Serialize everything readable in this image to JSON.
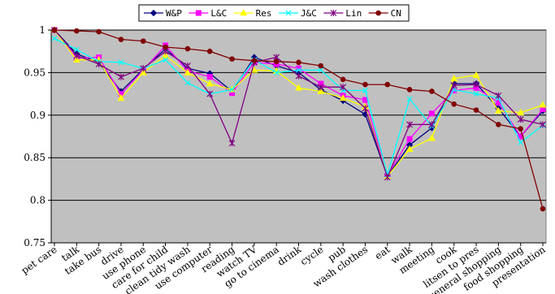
{
  "chart_data": {
    "type": "line",
    "title": "",
    "xlabel": "",
    "ylabel": "",
    "ylim": [
      0.75,
      1
    ],
    "yticks": [
      0.75,
      0.8,
      0.85,
      0.9,
      0.95,
      1
    ],
    "ytick_labels": [
      "0.75",
      "0.8",
      "0.85",
      "0.9",
      "0.95",
      "1"
    ],
    "grid": "horizontal",
    "legend_position": "top",
    "plot_background": "#c0c0c0",
    "categories": [
      "pet care",
      "talk",
      "take bus",
      "drive",
      "use phone",
      "care for child",
      "clean tidy wash",
      "use computer",
      "reading",
      "watch TV",
      "go to cinema",
      "drink",
      "cycle",
      "pub",
      "wash clothes",
      "eat",
      "walk",
      "meeting",
      "cook",
      "litsen to pres",
      "general shopping",
      "food shopping",
      "presentation"
    ],
    "series": [
      {
        "name": "W&P",
        "color": "#000080",
        "marker": "diamond",
        "values": [
          1.0,
          0.972,
          0.962,
          0.928,
          0.954,
          0.978,
          0.955,
          0.949,
          0.928,
          0.968,
          0.958,
          0.95,
          0.93,
          0.917,
          0.901,
          0.828,
          0.865,
          0.885,
          0.937,
          0.937,
          0.908,
          0.875,
          0.905
        ]
      },
      {
        "name": "L&C",
        "color": "#ff00ff",
        "marker": "square",
        "values": [
          1.0,
          0.967,
          0.968,
          0.925,
          0.953,
          0.982,
          0.952,
          0.945,
          0.926,
          0.962,
          0.96,
          0.955,
          0.937,
          0.923,
          0.918,
          0.829,
          0.872,
          0.902,
          0.929,
          0.932,
          0.915,
          0.875,
          0.907
        ]
      },
      {
        "name": "Res",
        "color": "#ffff00",
        "marker": "triangle",
        "values": [
          1.0,
          0.965,
          0.965,
          0.92,
          0.95,
          0.97,
          0.95,
          0.937,
          0.93,
          0.953,
          0.952,
          0.932,
          0.928,
          0.92,
          0.91,
          0.828,
          0.86,
          0.873,
          0.943,
          0.947,
          0.905,
          0.903,
          0.912
        ]
      },
      {
        "name": "J&C",
        "color": "#00ffff",
        "marker": "x",
        "values": [
          0.99,
          0.977,
          0.963,
          0.962,
          0.955,
          0.965,
          0.938,
          0.925,
          0.93,
          0.965,
          0.95,
          0.953,
          0.953,
          0.929,
          0.929,
          0.83,
          0.919,
          0.887,
          0.93,
          0.925,
          0.92,
          0.868,
          0.888
        ]
      },
      {
        "name": "Lin",
        "color": "#800080",
        "marker": "star",
        "values": [
          1.0,
          0.97,
          0.96,
          0.945,
          0.955,
          0.975,
          0.958,
          0.925,
          0.867,
          0.962,
          0.968,
          0.946,
          0.933,
          0.933,
          0.908,
          0.827,
          0.889,
          0.889,
          0.935,
          0.936,
          0.923,
          0.895,
          0.889
        ]
      },
      {
        "name": "CN",
        "color": "#800000",
        "marker": "circle",
        "values": [
          1.0,
          0.999,
          0.998,
          0.989,
          0.987,
          0.98,
          0.978,
          0.975,
          0.966,
          0.964,
          0.963,
          0.962,
          0.958,
          0.942,
          0.936,
          0.936,
          0.93,
          0.928,
          0.913,
          0.906,
          0.889,
          0.884,
          0.79
        ]
      }
    ]
  }
}
